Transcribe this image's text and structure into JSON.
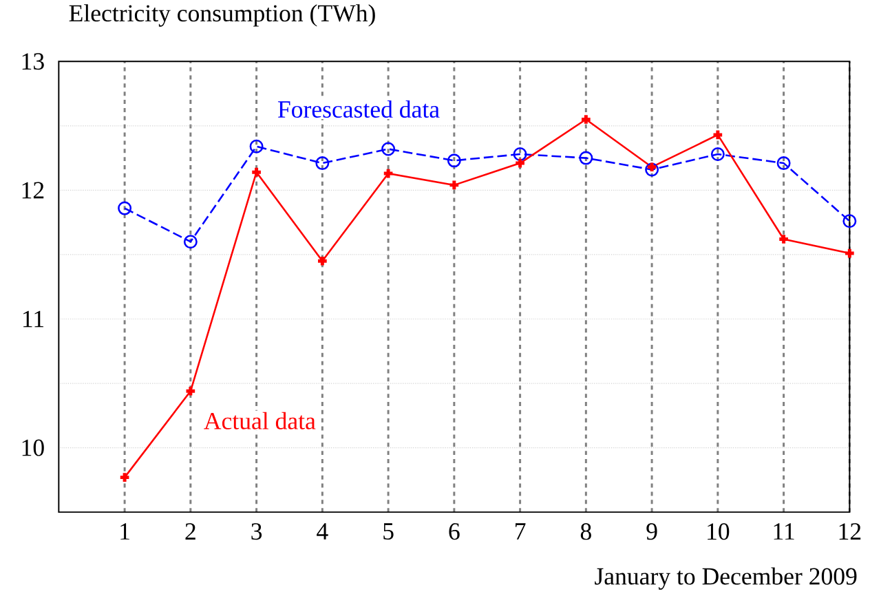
{
  "chart_data": {
    "type": "line",
    "ylabel": "Electricity consumption (TWh)",
    "xlabel": "January to December 2009",
    "x": [
      1,
      2,
      3,
      4,
      5,
      6,
      7,
      8,
      9,
      10,
      11,
      12
    ],
    "xlim": [
      0,
      12
    ],
    "xticks": [
      1,
      2,
      3,
      4,
      5,
      6,
      7,
      8,
      9,
      10,
      11,
      12
    ],
    "ylim": [
      9.5,
      13
    ],
    "yticks": [
      10,
      {
        "value": 10.5,
        "label": null
      },
      11,
      {
        "value": 11.5,
        "label": null
      },
      12,
      {
        "value": 12.5,
        "label": null
      },
      13
    ],
    "grid": true,
    "series": [
      {
        "name": "Forescasted data",
        "color": "#0000ff",
        "marker": "circle",
        "line_style": "dashed",
        "values": [
          11.86,
          11.6,
          12.34,
          12.21,
          12.32,
          12.23,
          12.28,
          12.25,
          12.16,
          12.28,
          12.21,
          11.76
        ]
      },
      {
        "name": "Actual data",
        "color": "#ff0000",
        "marker": "cross",
        "line_style": "solid",
        "values": [
          9.77,
          10.44,
          12.14,
          11.45,
          12.13,
          12.04,
          12.21,
          12.55,
          12.18,
          12.43,
          11.62,
          11.51
        ]
      }
    ]
  }
}
